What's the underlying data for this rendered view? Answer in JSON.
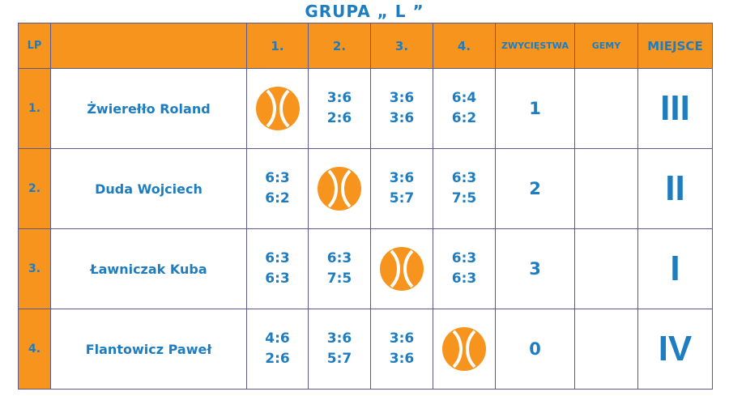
{
  "title": "GRUPA „ L ”",
  "headers": {
    "lp": "LP",
    "name": "",
    "m1": "1.",
    "m2": "2.",
    "m3": "3.",
    "m4": "4.",
    "wins": "ZWYCIĘSTWA",
    "games": "GEMY",
    "place": "MIEJSCE"
  },
  "colors": {
    "accent": "#f7941d",
    "text": "#1d7dc0",
    "border": "#5a5a8c"
  },
  "rows": [
    {
      "lp": "1.",
      "name": "Żwierełło Roland",
      "scores": [
        [
          "",
          ""
        ],
        [
          "3:6",
          "2:6"
        ],
        [
          "3:6",
          "3:6"
        ],
        [
          "6:4",
          "6:2"
        ]
      ],
      "wins": "1",
      "games": "",
      "place": "III"
    },
    {
      "lp": "2.",
      "name": "Duda Wojciech",
      "scores": [
        [
          "6:3",
          "6:2"
        ],
        [
          "",
          ""
        ],
        [
          "3:6",
          "5:7"
        ],
        [
          "6:3",
          "7:5"
        ]
      ],
      "wins": "2",
      "games": "",
      "place": "II"
    },
    {
      "lp": "3.",
      "name": "Ławniczak Kuba",
      "scores": [
        [
          "6:3",
          "6:3"
        ],
        [
          "6:3",
          "7:5"
        ],
        [
          "",
          ""
        ],
        [
          "6:3",
          "6:3"
        ]
      ],
      "wins": "3",
      "games": "",
      "place": "I"
    },
    {
      "lp": "4.",
      "name": "Flantowicz Paweł",
      "scores": [
        [
          "4:6",
          "2:6"
        ],
        [
          "3:6",
          "5:7"
        ],
        [
          "3:6",
          "3:6"
        ],
        [
          "",
          ""
        ]
      ],
      "wins": "0",
      "games": "",
      "place": "IV"
    }
  ]
}
